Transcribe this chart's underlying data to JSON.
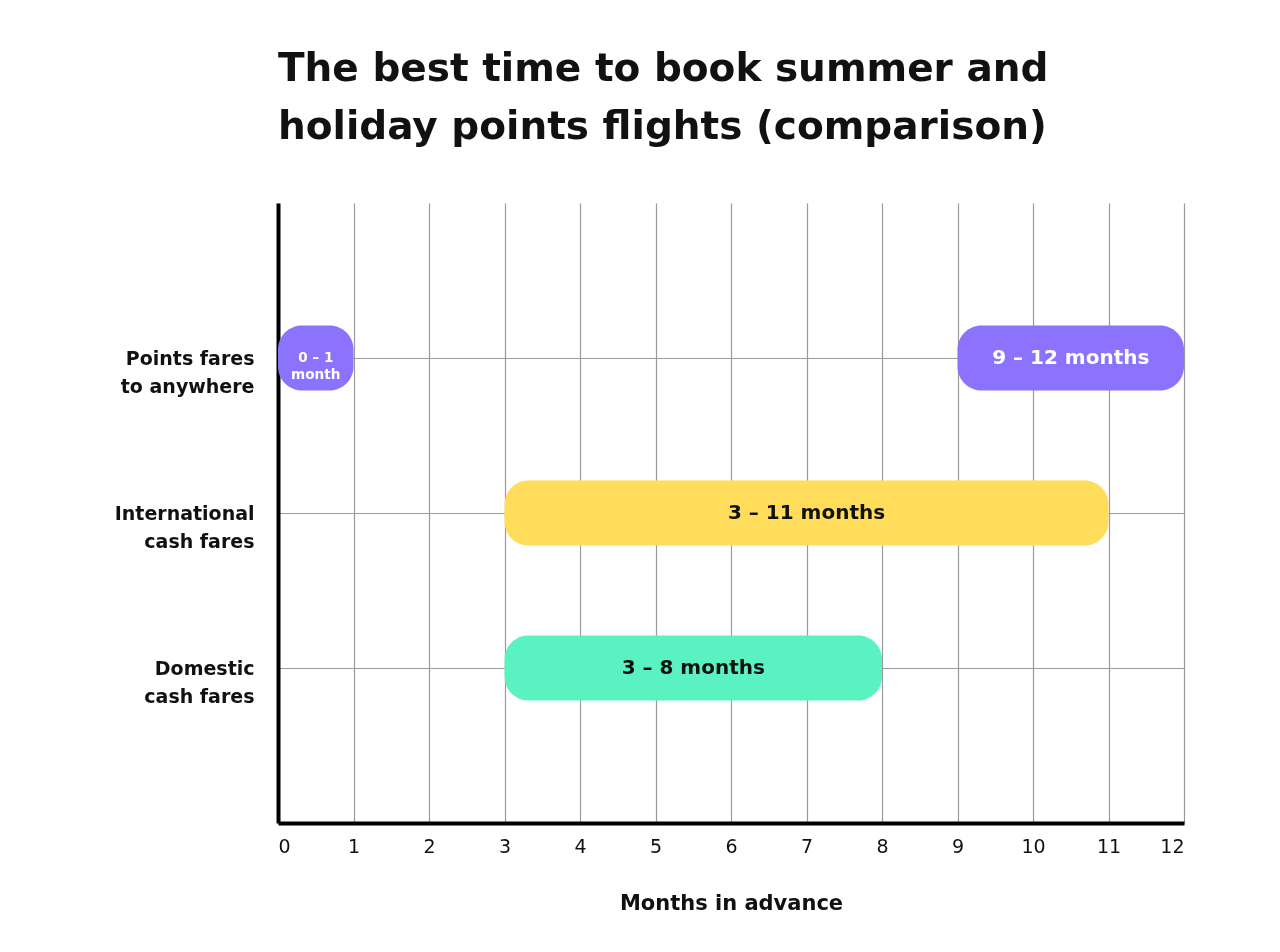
{
  "chart_data": {
    "type": "bar",
    "orientation": "horizontal",
    "title": "The best time to book summer and holiday points flights (comparison)",
    "xlabel": "Months in advance",
    "categories": [
      "Points fares to anywhere",
      "International cash fares",
      "Domestic cash fares"
    ],
    "series": [
      {
        "values": [
          1,
          8,
          5
        ],
        "base": [
          0,
          3,
          3
        ],
        "colors": [
          "#8c73fe",
          "#ffdc5a",
          "#5af2c0"
        ]
      },
      {
        "values": [
          3,
          null,
          null
        ],
        "base": [
          9,
          null,
          null
        ],
        "colors": [
          "#8c73fe",
          null,
          null
        ]
      }
    ],
    "annotations": [
      "0 – 1 month",
      "9 – 12 months",
      "3 – 11 months",
      "3 – 8 months"
    ],
    "xlim": [
      0,
      12
    ],
    "xticks": [
      0,
      1,
      2,
      3,
      4,
      5,
      6,
      7,
      8,
      9,
      10,
      11,
      12
    ],
    "grid": true
  }
}
